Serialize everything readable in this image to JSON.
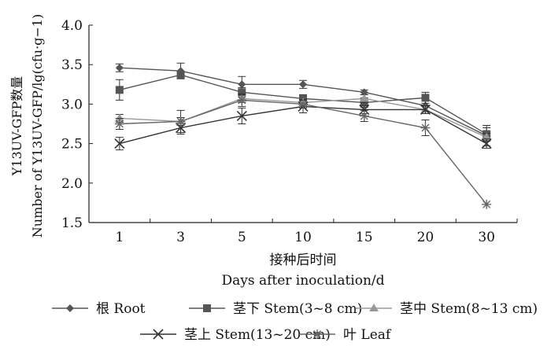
{
  "chart_data": {
    "type": "line",
    "categories": [
      "1",
      "3",
      "5",
      "10",
      "15",
      "20",
      "30"
    ],
    "ylim": [
      1.5,
      4.0
    ],
    "yticks": [
      "1.5",
      "2.0",
      "2.5",
      "3.0",
      "3.5",
      "4.0"
    ],
    "ylabel_cn": "Y13UV-GFP数量",
    "ylabel_en": "Number of Y13UV-GFP/lg(cfu·g−1)",
    "xlabel_cn": "接种后时间",
    "xlabel_en": "Days after inoculation/d",
    "grid": false,
    "legend_position": "bottom",
    "series": [
      {
        "name": "根  Root",
        "marker": "diamond",
        "color": "#555555",
        "values": [
          3.46,
          3.42,
          3.25,
          3.25,
          3.15,
          2.98,
          2.6
        ],
        "errors": [
          0.05,
          0.1,
          0.1,
          0.05,
          0.03,
          0.08,
          0.13
        ]
      },
      {
        "name": "茎下  Stem(3~8 cm)",
        "marker": "square",
        "color": "#555555",
        "values": [
          3.18,
          3.37,
          3.15,
          3.07,
          3.02,
          3.08,
          2.62
        ],
        "errors": [
          0.13,
          0.04,
          0.06,
          0.05,
          0.06,
          0.07,
          0.08
        ]
      },
      {
        "name": "茎中  Stem(8~13 cm)",
        "marker": "triangle",
        "color": "#999999",
        "values": [
          2.82,
          2.78,
          3.07,
          3.02,
          3.07,
          2.93,
          2.58
        ],
        "errors": [
          0.05,
          0.05,
          0.05,
          0.04,
          0.05,
          0.05,
          0.05
        ]
      },
      {
        "name": "茎上  Stem(13~20 cm)",
        "marker": "x",
        "color": "#333333",
        "values": [
          2.5,
          2.7,
          2.85,
          2.97,
          2.93,
          2.93,
          2.5
        ],
        "errors": [
          0.08,
          0.08,
          0.1,
          0.08,
          0.05,
          0.05,
          0.06
        ]
      },
      {
        "name": "叶  Leaf",
        "marker": "star",
        "color": "#666666",
        "values": [
          2.75,
          2.78,
          3.05,
          3.0,
          2.85,
          2.7,
          1.73
        ],
        "errors": [
          0.07,
          0.14,
          0.08,
          0.05,
          0.07,
          0.1,
          0.0
        ]
      }
    ]
  }
}
